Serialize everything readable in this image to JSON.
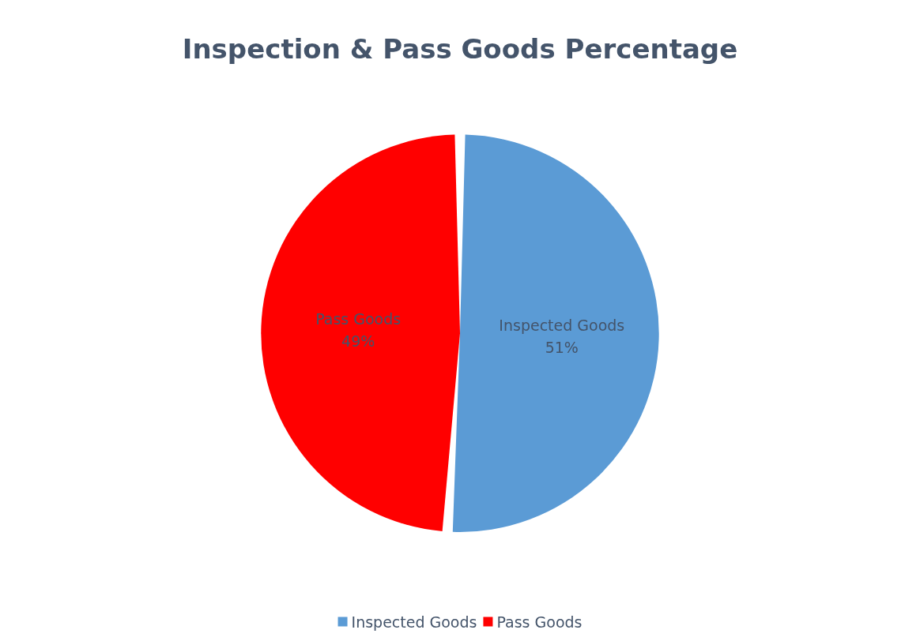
{
  "chart_data": {
    "type": "pie",
    "title": "Inspection & Pass Goods Percentage",
    "categories": [
      "Inspected Goods",
      "Pass Goods"
    ],
    "values": [
      51,
      49
    ],
    "colors": [
      "#5b9bd5",
      "#ff0000"
    ],
    "value_labels": [
      "51%",
      "49%"
    ],
    "legend": "bottom"
  }
}
